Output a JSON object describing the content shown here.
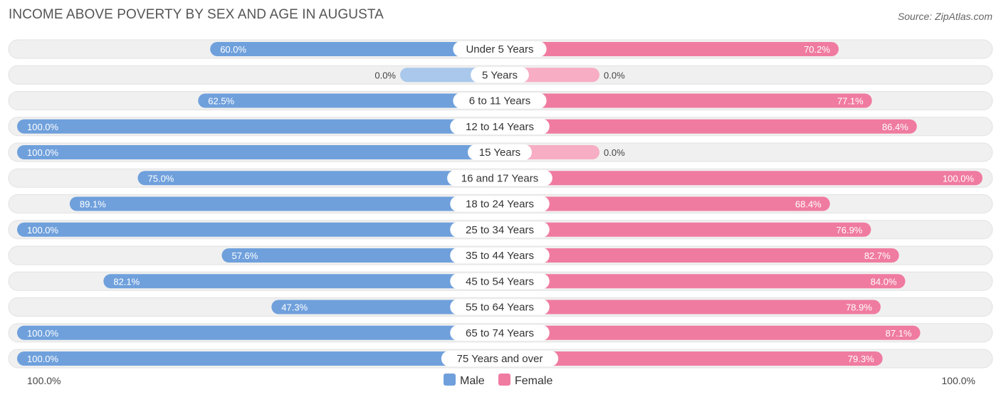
{
  "header": {
    "title": "INCOME ABOVE POVERTY BY SEX AND AGE IN AUGUSTA",
    "source": "Source: ZipAtlas.com"
  },
  "colors": {
    "male": "#6fa0dc",
    "male_light": "#a9c8ec",
    "female": "#f07ba0",
    "female_light": "#f7adc4",
    "row_bg": "#f0f0f0",
    "row_border": "#e2e2e2"
  },
  "chart_data": {
    "type": "bar",
    "orientation": "horizontal-diverging",
    "categories": [
      "Under 5 Years",
      "5 Years",
      "6 to 11 Years",
      "12 to 14 Years",
      "15 Years",
      "16 and 17 Years",
      "18 to 24 Years",
      "25 to 34 Years",
      "35 to 44 Years",
      "45 to 54 Years",
      "55 to 64 Years",
      "65 to 74 Years",
      "75 Years and over"
    ],
    "series": [
      {
        "name": "Male",
        "values": [
          60.0,
          0.0,
          62.5,
          100.0,
          100.0,
          75.0,
          89.1,
          100.0,
          57.6,
          82.1,
          47.3,
          100.0,
          100.0
        ],
        "labels": [
          "60.0%",
          "0.0%",
          "62.5%",
          "100.0%",
          "100.0%",
          "75.0%",
          "89.1%",
          "100.0%",
          "57.6%",
          "82.1%",
          "47.3%",
          "100.0%",
          "100.0%"
        ]
      },
      {
        "name": "Female",
        "values": [
          70.2,
          0.0,
          77.1,
          86.4,
          0.0,
          100.0,
          68.4,
          76.9,
          82.7,
          84.0,
          78.9,
          87.1,
          79.3
        ],
        "labels": [
          "70.2%",
          "0.0%",
          "77.1%",
          "86.4%",
          "0.0%",
          "100.0%",
          "68.4%",
          "76.9%",
          "82.7%",
          "84.0%",
          "78.9%",
          "87.1%",
          "79.3%"
        ]
      }
    ],
    "xlim": [
      0,
      100
    ],
    "axis_left_label": "100.0%",
    "axis_right_label": "100.0%",
    "legend_position": "bottom-center"
  }
}
